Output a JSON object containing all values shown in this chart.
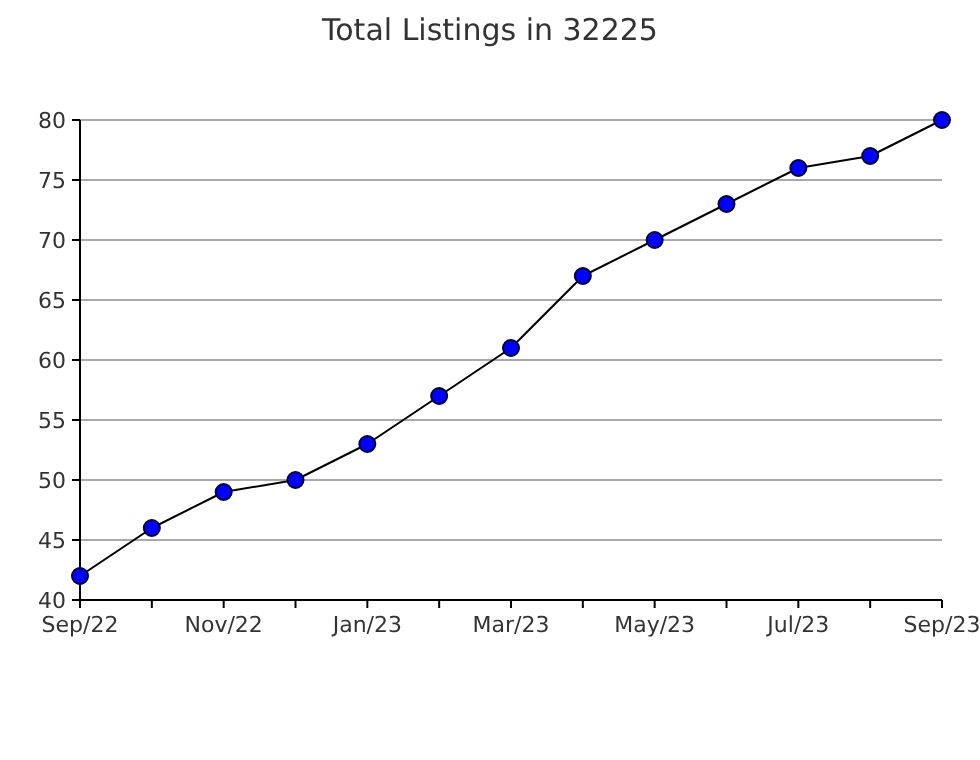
{
  "chart_data": {
    "type": "line",
    "title": "Total Listings in 32225",
    "categories": [
      "Sep/22",
      null,
      "Nov/22",
      null,
      "Jan/23",
      null,
      "Mar/23",
      null,
      "May/23",
      null,
      "Jul/23",
      null,
      "Sep/23"
    ],
    "series": [
      {
        "color": "#0000ff",
        "values": [
          42,
          46,
          49,
          50,
          53,
          57,
          61,
          67,
          70,
          73,
          76,
          77,
          80
        ]
      }
    ],
    "ylim": [
      40,
      80
    ],
    "yticks": [
      40,
      45,
      50,
      55,
      60,
      65,
      70,
      75,
      80
    ],
    "grid": "y",
    "marker": "circle",
    "line_style": "solid"
  }
}
